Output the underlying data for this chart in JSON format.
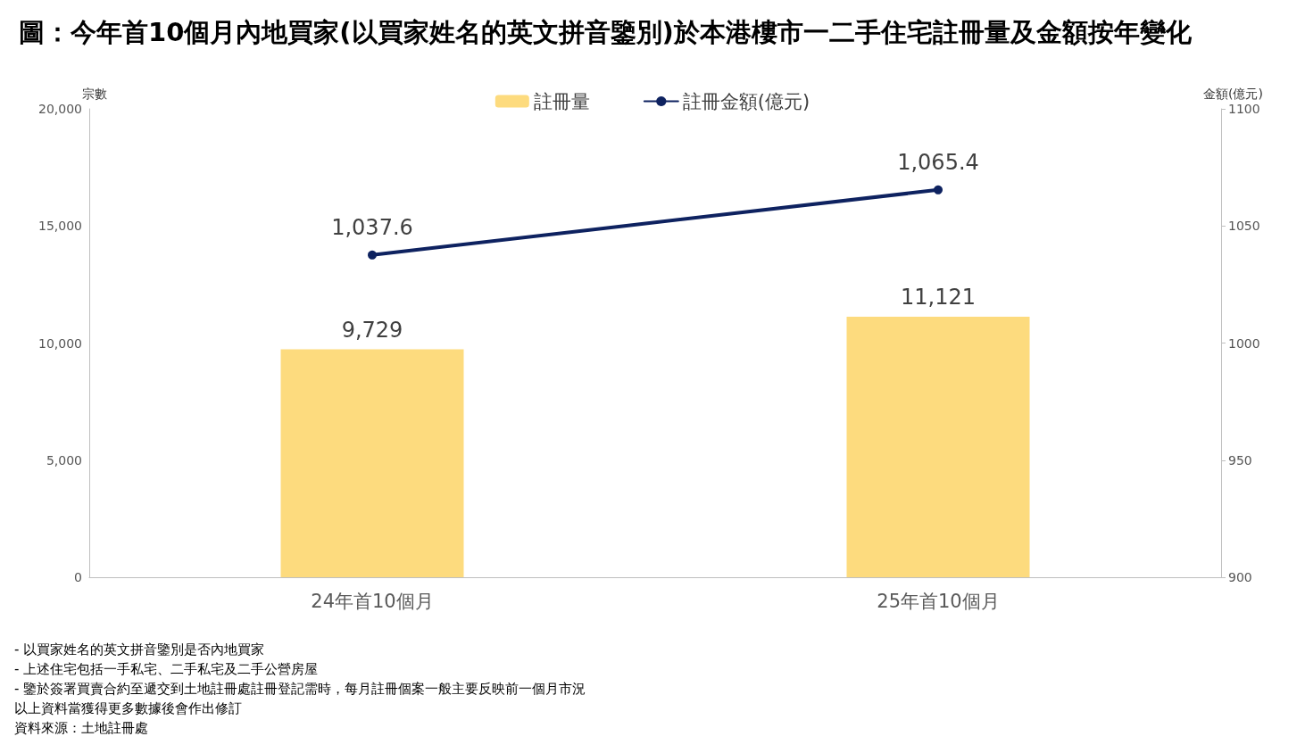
{
  "chart_data": {
    "type": "bar",
    "title": "圖：今年首10個月內地買家(以買家姓名的英文拼音鑒別)於本港樓市一二手住宅註冊量及金額按年變化",
    "ylabel": "宗數",
    "y2label": "金額(億元)",
    "categories": [
      "24年首10個月",
      "25年首10個月"
    ],
    "series": [
      {
        "name": "註冊量",
        "color": "#fddb7e",
        "values": [
          9729,
          11121
        ],
        "value_labels": [
          "9,729",
          "11,121"
        ]
      },
      {
        "name": "註冊金額(億元)",
        "type": "line",
        "axis": "y2",
        "color": "#0e2260",
        "values": [
          1037.6,
          1065.4
        ],
        "value_labels": [
          "1,037.6",
          "1,065.4"
        ]
      }
    ],
    "ylim": [
      0,
      20000
    ],
    "yticks": [
      {
        "value": 0,
        "label": "0"
      },
      {
        "value": 5000,
        "label": "5,000"
      },
      {
        "value": 10000,
        "label": "10,000"
      },
      {
        "value": 15000,
        "label": "15,000"
      },
      {
        "value": 20000,
        "label": "20,000"
      }
    ],
    "y2lim": [
      900,
      1100
    ],
    "y2ticks": [
      900,
      950,
      1000,
      1050,
      1100
    ],
    "legend": "top",
    "marker": "circle",
    "line_style": "solid",
    "annotations": [
      "- 以買家姓名的英文拼音鑒別是否內地買家",
      "- 上述住宅包括一手私宅、二手私宅及二手公營房屋",
      "- 鑒於簽署買賣合約至遞交到土地註冊處註冊登記需時，每月註冊個案一般主要反映前一個月市況",
      "以上資料當獲得更多數據後會作出修訂",
      "資料來源：土地註冊處"
    ]
  }
}
